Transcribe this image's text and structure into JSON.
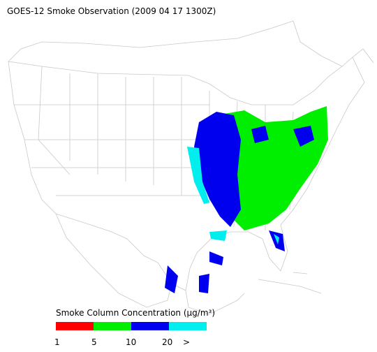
{
  "title": "GOES-12 Smoke Observation (2009 04 17  1300Z)",
  "legend": {
    "title": "Smoke Column Concentration (μg/m³)",
    "colors": [
      "#ff0000",
      "#00ee00",
      "#0000ee",
      "#00eeee"
    ],
    "labels": [
      "1",
      "5",
      "10",
      "20",
      ">"
    ]
  }
}
